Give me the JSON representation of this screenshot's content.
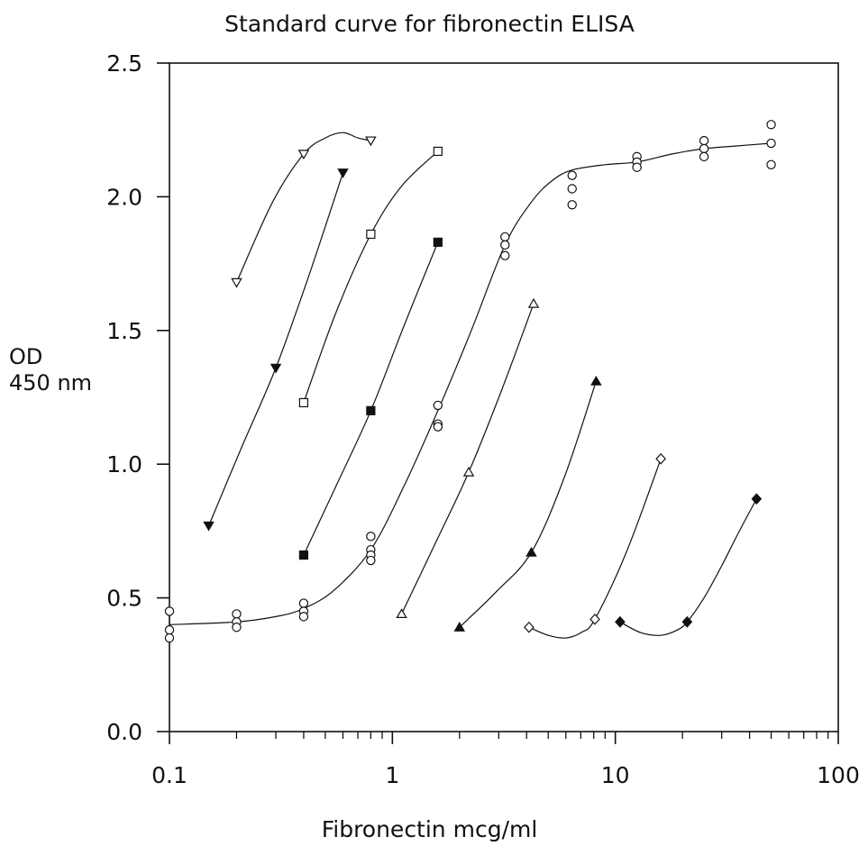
{
  "chart_data": {
    "type": "scatter",
    "title": "Standard curve for fibronectin ELISA",
    "xlabel": "Fibronectin mcg/ml",
    "ylabel_lines": [
      "OD",
      "450 nm"
    ],
    "xscale": "log",
    "xlim": [
      0.1,
      100
    ],
    "ylim": [
      0.0,
      2.5
    ],
    "xticks": [
      0.1,
      1,
      10,
      100
    ],
    "xtick_labels": [
      "0.1",
      "1",
      "10",
      "100"
    ],
    "yticks": [
      0.0,
      0.5,
      1.0,
      1.5,
      2.0,
      2.5
    ],
    "ytick_labels": [
      "0.0",
      "0.5",
      "1.0",
      "1.5",
      "2.0",
      "2.5"
    ],
    "grid": false,
    "colors": {
      "ink": "#111111",
      "background": "#ffffff"
    },
    "series": [
      {
        "marker": "triangle-down-open",
        "points": [
          [
            0.2,
            1.68
          ],
          [
            0.4,
            2.16
          ],
          [
            0.8,
            2.21
          ]
        ],
        "curve": [
          [
            0.2,
            1.68
          ],
          [
            0.29,
            1.98
          ],
          [
            0.4,
            2.16
          ],
          [
            0.5,
            2.22
          ],
          [
            0.6,
            2.24
          ],
          [
            0.7,
            2.22
          ],
          [
            0.8,
            2.21
          ]
        ]
      },
      {
        "marker": "triangle-down-filled",
        "points": [
          [
            0.15,
            0.77
          ],
          [
            0.3,
            1.36
          ],
          [
            0.6,
            2.09
          ]
        ],
        "curve": [
          [
            0.15,
            0.77
          ],
          [
            0.21,
            1.06
          ],
          [
            0.3,
            1.36
          ],
          [
            0.42,
            1.7
          ],
          [
            0.6,
            2.09
          ]
        ]
      },
      {
        "marker": "square-open",
        "points": [
          [
            0.4,
            1.23
          ],
          [
            0.8,
            1.86
          ],
          [
            1.6,
            2.17
          ]
        ],
        "curve": [
          [
            0.4,
            1.23
          ],
          [
            0.56,
            1.57
          ],
          [
            0.8,
            1.86
          ],
          [
            1.1,
            2.04
          ],
          [
            1.6,
            2.17
          ]
        ]
      },
      {
        "marker": "square-filled",
        "points": [
          [
            0.4,
            0.66
          ],
          [
            0.8,
            1.2
          ],
          [
            1.6,
            1.83
          ]
        ],
        "curve": [
          [
            0.4,
            0.66
          ],
          [
            0.56,
            0.92
          ],
          [
            0.8,
            1.2
          ],
          [
            1.13,
            1.52
          ],
          [
            1.6,
            1.83
          ]
        ]
      },
      {
        "marker": "circle-open",
        "points": [
          [
            0.1,
            0.45
          ],
          [
            0.1,
            0.38
          ],
          [
            0.1,
            0.35
          ],
          [
            0.2,
            0.44
          ],
          [
            0.2,
            0.41
          ],
          [
            0.2,
            0.39
          ],
          [
            0.4,
            0.48
          ],
          [
            0.4,
            0.45
          ],
          [
            0.4,
            0.43
          ],
          [
            0.8,
            0.73
          ],
          [
            0.8,
            0.68
          ],
          [
            0.8,
            0.66
          ],
          [
            0.8,
            0.64
          ],
          [
            1.6,
            1.22
          ],
          [
            1.6,
            1.15
          ],
          [
            1.6,
            1.14
          ],
          [
            3.2,
            1.85
          ],
          [
            3.2,
            1.82
          ],
          [
            3.2,
            1.78
          ],
          [
            6.4,
            2.08
          ],
          [
            6.4,
            2.03
          ],
          [
            6.4,
            1.97
          ],
          [
            12.5,
            2.15
          ],
          [
            12.5,
            2.13
          ],
          [
            12.5,
            2.11
          ],
          [
            25,
            2.21
          ],
          [
            25,
            2.18
          ],
          [
            25,
            2.15
          ],
          [
            50,
            2.27
          ],
          [
            50,
            2.2
          ],
          [
            50,
            2.12
          ]
        ],
        "curve": [
          [
            0.1,
            0.4
          ],
          [
            0.2,
            0.41
          ],
          [
            0.3,
            0.43
          ],
          [
            0.4,
            0.46
          ],
          [
            0.55,
            0.53
          ],
          [
            0.8,
            0.68
          ],
          [
            1.13,
            0.92
          ],
          [
            1.6,
            1.2
          ],
          [
            2.26,
            1.5
          ],
          [
            3.2,
            1.82
          ],
          [
            4.2,
            1.98
          ],
          [
            5.2,
            2.06
          ],
          [
            6.4,
            2.1
          ],
          [
            9,
            2.12
          ],
          [
            12.5,
            2.13
          ],
          [
            18,
            2.16
          ],
          [
            25,
            2.18
          ],
          [
            35,
            2.19
          ],
          [
            50,
            2.2
          ]
        ]
      },
      {
        "marker": "triangle-up-open",
        "points": [
          [
            1.1,
            0.44
          ],
          [
            2.2,
            0.97
          ],
          [
            4.3,
            1.6
          ]
        ],
        "curve": [
          [
            1.1,
            0.44
          ],
          [
            1.55,
            0.7
          ],
          [
            2.2,
            0.97
          ],
          [
            3.1,
            1.28
          ],
          [
            4.3,
            1.6
          ]
        ]
      },
      {
        "marker": "triangle-up-filled",
        "points": [
          [
            2.0,
            0.39
          ],
          [
            4.2,
            0.67
          ],
          [
            8.2,
            1.31
          ]
        ],
        "curve": [
          [
            2.0,
            0.39
          ],
          [
            2.9,
            0.52
          ],
          [
            4.2,
            0.67
          ],
          [
            5.9,
            0.95
          ],
          [
            8.2,
            1.31
          ]
        ]
      },
      {
        "marker": "diamond-open",
        "points": [
          [
            4.1,
            0.39
          ],
          [
            8.1,
            0.42
          ],
          [
            16,
            1.02
          ]
        ],
        "curve": [
          [
            4.1,
            0.39
          ],
          [
            5.0,
            0.36
          ],
          [
            6.0,
            0.35
          ],
          [
            7.0,
            0.37
          ],
          [
            8.1,
            0.42
          ],
          [
            11.2,
            0.67
          ],
          [
            16,
            1.02
          ]
        ]
      },
      {
        "marker": "diamond-filled",
        "points": [
          [
            10.5,
            0.41
          ],
          [
            21,
            0.41
          ],
          [
            43,
            0.87
          ]
        ],
        "curve": [
          [
            10.5,
            0.41
          ],
          [
            13,
            0.37
          ],
          [
            16,
            0.36
          ],
          [
            19,
            0.38
          ],
          [
            21,
            0.41
          ],
          [
            25,
            0.5
          ],
          [
            30,
            0.62
          ],
          [
            36,
            0.75
          ],
          [
            43,
            0.87
          ]
        ]
      }
    ]
  }
}
